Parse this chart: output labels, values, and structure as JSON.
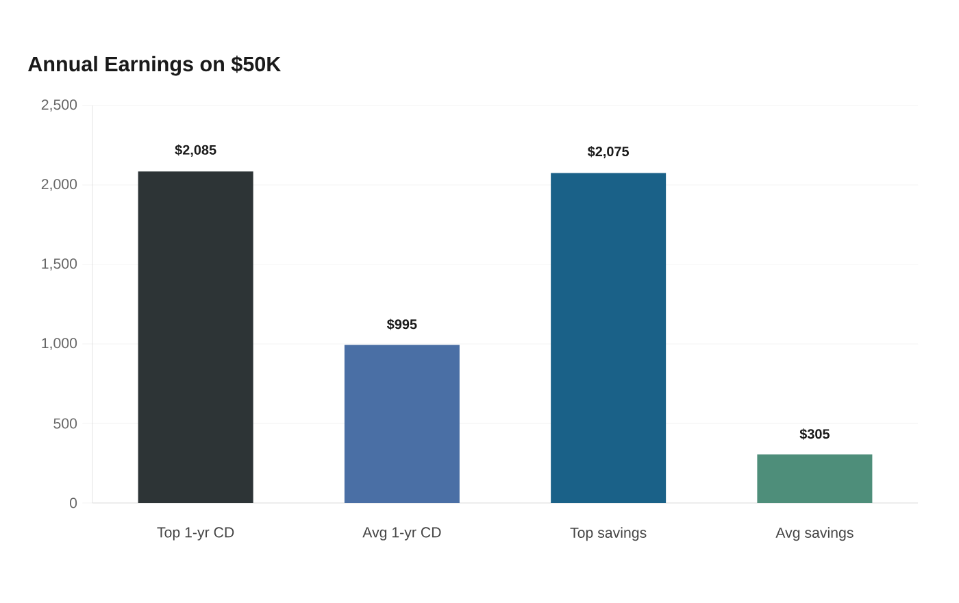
{
  "chart_data": {
    "type": "bar",
    "title": "Annual Earnings on $50K",
    "categories": [
      "Top 1-yr CD",
      "Avg 1-yr CD",
      "Top savings",
      "Avg savings"
    ],
    "values": [
      2085,
      995,
      2075,
      305
    ],
    "colors": [
      "#2d3436",
      "#4a6fa5",
      "#1a6188",
      "#4e8e7a"
    ],
    "value_labels": [
      "$2,085",
      "$995",
      "$2,075",
      "$305"
    ],
    "ylim": [
      0,
      2500
    ],
    "yticks": [
      {
        "value": 0,
        "label": "0"
      },
      {
        "value": 500,
        "label": "500"
      },
      {
        "value": 1000,
        "label": "1,000"
      },
      {
        "value": 1500,
        "label": "1,500"
      },
      {
        "value": 2000,
        "label": "2,000"
      },
      {
        "value": 2500,
        "label": "2,500"
      }
    ],
    "grid": "y"
  }
}
